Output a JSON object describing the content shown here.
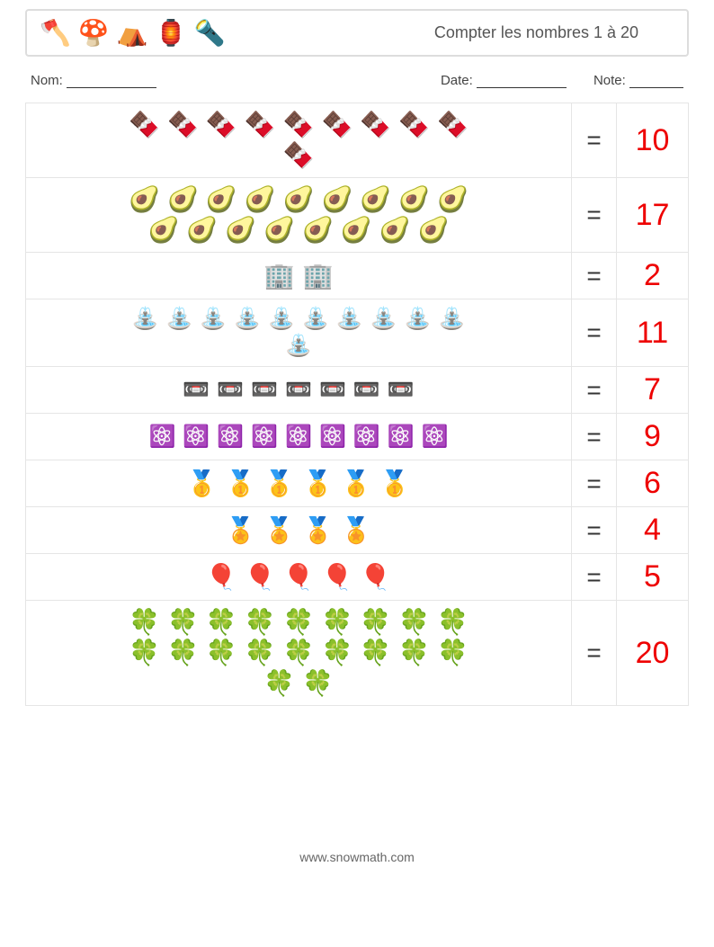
{
  "header": {
    "title": "Compter les nombres 1 à 20",
    "icons": [
      "🪓",
      "🍄",
      "⛺",
      "🏮",
      "🔦"
    ]
  },
  "meta": {
    "name_label": "Nom:",
    "date_label": "Date:",
    "note_label": "Note:"
  },
  "colors": {
    "answer": "#ee0000",
    "border": "#e5e5e5",
    "text": "#333333"
  },
  "equals": "=",
  "rows": [
    {
      "icon": "🍫",
      "count": 10,
      "answer": "10",
      "per_line": 10,
      "size": ""
    },
    {
      "icon": "🥑",
      "count": 17,
      "answer": "17",
      "per_line": 10,
      "size": ""
    },
    {
      "icon": "🏢",
      "count": 2,
      "answer": "2",
      "per_line": 10,
      "size": ""
    },
    {
      "icon": "⛲",
      "count": 11,
      "answer": "11",
      "per_line": 10,
      "size": "sm"
    },
    {
      "icon": "📼",
      "count": 7,
      "answer": "7",
      "per_line": 10,
      "size": "sm"
    },
    {
      "icon": "⚛️",
      "count": 9,
      "answer": "9",
      "per_line": 10,
      "size": "sm"
    },
    {
      "icon": "🥇",
      "count": 6,
      "answer": "6",
      "per_line": 10,
      "size": ""
    },
    {
      "icon": "🏅",
      "count": 4,
      "answer": "4",
      "per_line": 10,
      "size": ""
    },
    {
      "icon": "🎈",
      "count": 5,
      "answer": "5",
      "per_line": 10,
      "size": ""
    },
    {
      "icon": "🍀",
      "count": 20,
      "answer": "20",
      "per_line": 10,
      "size": ""
    }
  ],
  "footer": "www.snowmath.com"
}
